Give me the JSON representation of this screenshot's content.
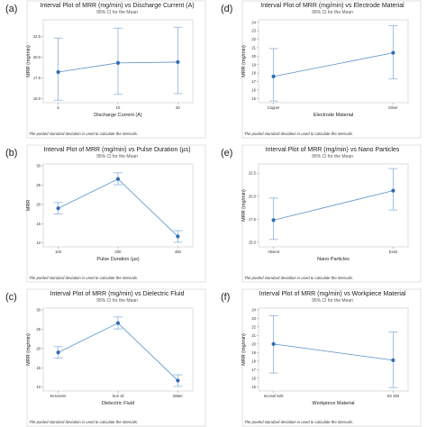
{
  "colors": {
    "line": "#5b8fc7",
    "point": "#2f6db5",
    "interval": "#8fb3d9"
  },
  "chart_data": [
    {
      "panel": "(a)",
      "type": "line",
      "title": "Interval Plot of MRR (mg/min) vs Discharge Current (A)",
      "subtitle": "95% CI for the Mean",
      "xlabel": "Discharge Current (A)",
      "ylabel": "MRR (mg/min)",
      "categories": [
        "5",
        "10",
        "20"
      ],
      "ylim": [
        14.5,
        24.5
      ],
      "yticks": [
        "15.0",
        "17.5",
        "20.0",
        "22.5"
      ],
      "ytick_values": [
        15,
        17.5,
        20,
        22.5
      ],
      "means": [
        18.2,
        19.3,
        19.4
      ],
      "ci_low": [
        14.8,
        15.5,
        15.6
      ],
      "ci_high": [
        22.3,
        23.5,
        23.6
      ],
      "footnote": "The pooled standard deviation is used to calculate the intervals."
    },
    {
      "panel": "(d)",
      "type": "line",
      "title": "Interval Plot of MRR (mg/min) vs Electrode Material",
      "subtitle": "95% CI for the Mean",
      "xlabel": "Electrode Material",
      "ylabel": "MRR (mg/min)",
      "categories": [
        "Copper",
        "Silver"
      ],
      "ylim": [
        14.5,
        24.3
      ],
      "yticks": [
        "15",
        "16",
        "17",
        "18",
        "19",
        "20",
        "21",
        "22",
        "23",
        "24"
      ],
      "ytick_values": [
        15,
        16,
        17,
        18,
        19,
        20,
        21,
        22,
        23,
        24
      ],
      "means": [
        17.6,
        20.4
      ],
      "ci_low": [
        14.7,
        17.3
      ],
      "ci_high": [
        20.9,
        23.6
      ],
      "footnote": "The pooled standard deviation is used to calculate the intervals."
    },
    {
      "panel": "(b)",
      "type": "line",
      "title": "Interval Plot of MRR (mg/min) vs Pulse Duration (µs)",
      "subtitle": "95% CI for the Mean",
      "xlabel": "Pulse Duration (µs)",
      "ylabel": "MRR",
      "categories": [
        "100",
        "200",
        "450"
      ],
      "ylim": [
        9,
        30.5
      ],
      "yticks": [
        "10",
        "15",
        "20",
        "25",
        "30"
      ],
      "ytick_values": [
        10,
        15,
        20,
        25,
        30
      ],
      "means": [
        19.0,
        26.6,
        11.7
      ],
      "ci_low": [
        17.5,
        25.1,
        10.2
      ],
      "ci_high": [
        20.5,
        28.2,
        13.2
      ],
      "footnote": "The pooled standard deviation is used to calculate the intervals."
    },
    {
      "panel": "(e)",
      "type": "line",
      "title": "Interval Plot of MRR (mg/min) vs Nano Particles",
      "subtitle": "95% CI for the Mean",
      "xlabel": "Nano Particles",
      "ylabel": "MRR (mg/min)",
      "categories": [
        "Absent",
        "Exist"
      ],
      "ylim": [
        14.5,
        23.5
      ],
      "yticks": [
        "15.0",
        "17.5",
        "20.0",
        "22.5",
        "25.0"
      ],
      "ytick_values": [
        15,
        17.5,
        20,
        22.5,
        25
      ],
      "means": [
        17.4,
        20.6
      ],
      "ci_low": [
        15.3,
        18.5
      ],
      "ci_high": [
        19.8,
        23.0
      ],
      "footnote": "The pooled standard deviation is used to calculate the intervals."
    },
    {
      "panel": "(c)",
      "type": "line",
      "title": "Interval Plot of MRR (mg/min) vs Dielectric Fluid",
      "subtitle": "95% CI for the Mean",
      "xlabel": "Dielectric Fluid",
      "ylabel": "MRR (mg/min)",
      "categories": [
        "Kerosene",
        "Sun oil",
        "Water"
      ],
      "ylim": [
        9,
        30.5
      ],
      "yticks": [
        "10",
        "15",
        "20",
        "25",
        "30"
      ],
      "ytick_values": [
        10,
        15,
        20,
        25,
        30
      ],
      "means": [
        19.0,
        26.6,
        11.7
      ],
      "ci_low": [
        17.5,
        25.1,
        10.2
      ],
      "ci_high": [
        20.5,
        28.2,
        13.2
      ],
      "footnote": "The pooled standard deviation is used to calculate the intervals."
    },
    {
      "panel": "(f)",
      "type": "line",
      "title": "Interval Plot of MRR (mg/min) vs Workpiece Material",
      "subtitle": "95% CI for the Mean",
      "xlabel": "Workpiece Material",
      "ylabel": "MRR (mg/min)",
      "categories": [
        "Inconel 625",
        "SS 304"
      ],
      "ylim": [
        14.5,
        24.2
      ],
      "yticks": [
        "15",
        "16",
        "17",
        "18",
        "19",
        "20",
        "21",
        "22",
        "23",
        "24"
      ],
      "ytick_values": [
        15,
        16,
        17,
        18,
        19,
        20,
        21,
        22,
        23,
        24
      ],
      "means": [
        20.0,
        18.1
      ],
      "ci_low": [
        16.6,
        14.9
      ],
      "ci_high": [
        23.3,
        21.4
      ],
      "footnote": "The pooled standard deviation is used to calculate the intervals."
    }
  ]
}
